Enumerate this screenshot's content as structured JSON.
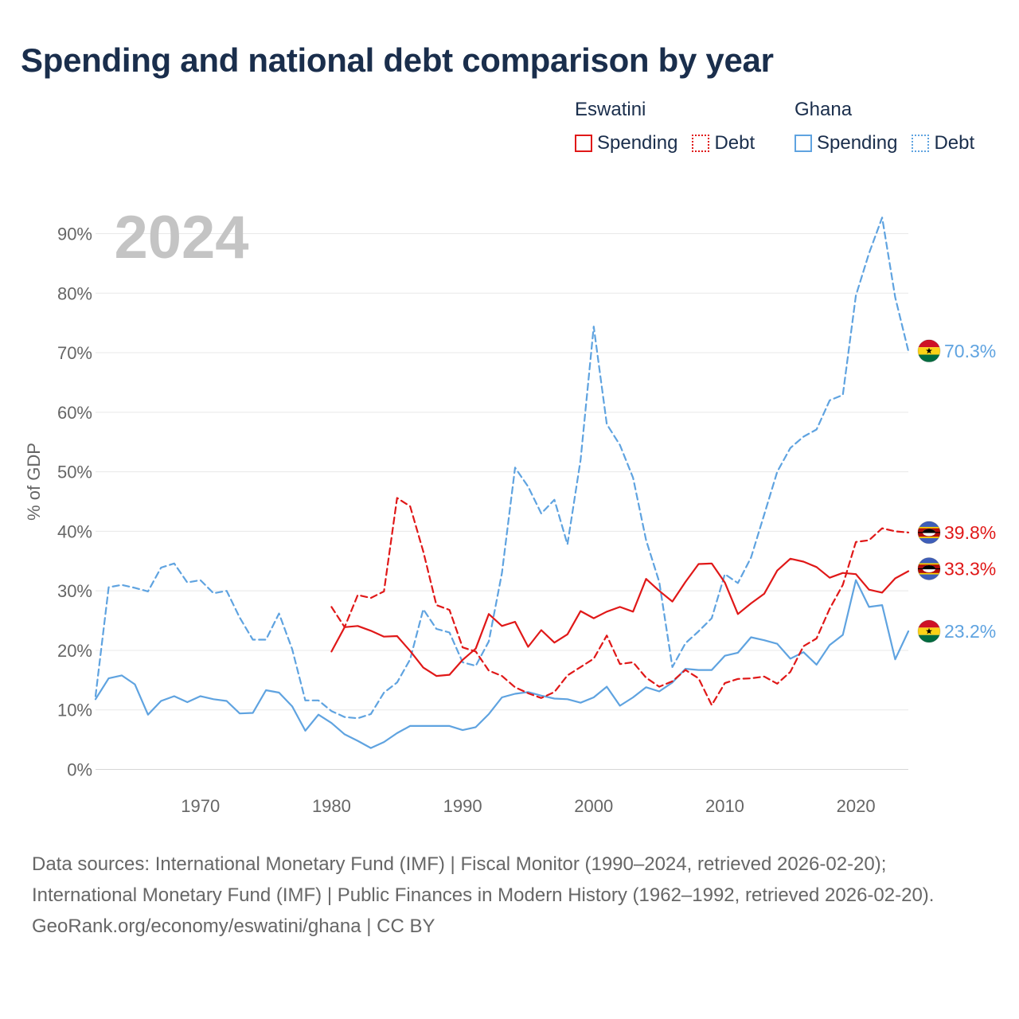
{
  "header": {
    "title": "Spending and national debt comparison by year"
  },
  "legend": {
    "groups": [
      {
        "country": "Eswatini",
        "color": "#e01818",
        "items": [
          "Spending",
          "Debt"
        ]
      },
      {
        "country": "Ghana",
        "color": "#5fa3e0",
        "items": [
          "Spending",
          "Debt"
        ]
      }
    ]
  },
  "chart_data": {
    "type": "line",
    "title": "Spending and national debt comparison by year",
    "year_label": "2024",
    "ylabel": "% of GDP",
    "xlabel": "",
    "xlim": [
      1962,
      2024
    ],
    "ylim": [
      0,
      90
    ],
    "yticks": [
      0,
      10,
      20,
      30,
      40,
      50,
      60,
      70,
      80,
      90
    ],
    "ytick_labels": [
      "0%",
      "10%",
      "20%",
      "30%",
      "40%",
      "50%",
      "60%",
      "70%",
      "80%",
      "90%"
    ],
    "xticks": [
      1970,
      1980,
      1990,
      2000,
      2010,
      2020
    ],
    "xtick_labels": [
      "1970",
      "1980",
      "1990",
      "2000",
      "2010",
      "2020"
    ],
    "series": [
      {
        "name": "Ghana Debt",
        "country": "Ghana",
        "kind": "Debt",
        "style": "dashed",
        "color": "#5fa3e0",
        "start_year": 1962,
        "values": [
          12.3,
          30.6,
          31.0,
          30.5,
          29.9,
          33.9,
          34.6,
          31.4,
          31.8,
          29.6,
          30.0,
          25.5,
          21.8,
          21.8,
          26.2,
          20.2,
          11.6,
          11.6,
          9.8,
          8.8,
          8.6,
          9.3,
          12.9,
          14.6,
          18.5,
          26.9,
          23.6,
          23.0,
          18.0,
          17.4,
          21.5,
          33.0,
          50.7,
          47.5,
          43.0,
          45.3,
          37.8,
          52.0,
          74.4,
          58.0,
          54.5,
          49.0,
          38.5,
          31.5,
          17.2,
          21.2,
          23.2,
          25.4,
          32.8,
          31.3,
          35.6,
          42.8,
          50.0,
          54.0,
          55.9,
          57.1,
          62.0,
          62.9,
          79.6,
          86.7,
          92.7,
          79.3,
          70.3
        ],
        "end_label": "70.3%"
      },
      {
        "name": "Ghana Spending",
        "country": "Ghana",
        "kind": "Spending",
        "style": "solid",
        "color": "#5fa3e0",
        "start_year": 1962,
        "values": [
          11.8,
          15.3,
          15.8,
          14.3,
          9.2,
          11.5,
          12.3,
          11.3,
          12.3,
          11.8,
          11.5,
          9.4,
          9.5,
          13.3,
          12.9,
          10.6,
          6.5,
          9.2,
          7.8,
          5.9,
          4.8,
          3.6,
          4.6,
          6.1,
          7.3,
          7.3,
          7.3,
          7.3,
          6.6,
          7.1,
          9.3,
          12.1,
          12.7,
          13.0,
          12.4,
          11.9,
          11.8,
          11.2,
          12.1,
          13.9,
          10.7,
          12.1,
          13.8,
          13.1,
          14.6,
          16.9,
          16.7,
          16.7,
          19.1,
          19.6,
          22.2,
          21.7,
          21.1,
          18.6,
          19.7,
          17.6,
          20.9,
          22.6,
          31.8,
          27.3,
          27.6,
          18.5,
          23.2
        ],
        "end_label": "23.2%"
      },
      {
        "name": "Eswatini Debt",
        "country": "Eswatini",
        "kind": "Debt",
        "style": "dashed",
        "color": "#e01818",
        "start_year": 1980,
        "values": [
          27.3,
          23.9,
          29.3,
          28.8,
          29.9,
          45.6,
          44.2,
          36.6,
          27.6,
          26.8,
          20.5,
          19.8,
          16.6,
          15.7,
          13.8,
          12.8,
          12.0,
          13.0,
          15.8,
          17.2,
          18.6,
          22.5,
          17.7,
          18.0,
          15.4,
          13.9,
          14.8,
          16.7,
          15.3,
          10.8,
          14.5,
          15.2,
          15.3,
          15.6,
          14.4,
          16.4,
          20.7,
          22.0,
          27.0,
          31.0,
          38.2,
          38.5,
          40.5,
          40.0,
          39.8
        ],
        "end_label": "39.8%"
      },
      {
        "name": "Eswatini Spending",
        "country": "Eswatini",
        "kind": "Spending",
        "style": "solid",
        "color": "#e01818",
        "start_year": 1980,
        "values": [
          19.8,
          23.9,
          24.1,
          23.3,
          22.3,
          22.4,
          19.9,
          17.1,
          15.7,
          15.9,
          18.4,
          20.3,
          26.1,
          24.1,
          24.8,
          20.6,
          23.4,
          21.3,
          22.7,
          26.6,
          25.4,
          26.5,
          27.3,
          26.5,
          32.0,
          30.0,
          28.2,
          31.5,
          34.5,
          34.6,
          31.4,
          26.1,
          27.9,
          29.5,
          33.4,
          35.4,
          34.9,
          34.0,
          32.2,
          33.0,
          32.8,
          30.2,
          29.7,
          32.1,
          33.3
        ],
        "end_label": "33.3%"
      }
    ]
  },
  "flags": [
    {
      "country": "Ghana",
      "series": "Ghana Debt",
      "colors": [
        "#ce1126",
        "#fcd116",
        "#006b3f",
        "#000000"
      ]
    },
    {
      "country": "Eswatini",
      "series": "Eswatini Debt",
      "colors": [
        "#3e5eb9",
        "#ffd900",
        "#b10c0c",
        "#ffffff",
        "#000000"
      ]
    },
    {
      "country": "Eswatini",
      "series": "Eswatini Spending",
      "colors": [
        "#3e5eb9",
        "#ffd900",
        "#b10c0c",
        "#ffffff",
        "#000000"
      ]
    },
    {
      "country": "Ghana",
      "series": "Ghana Spending",
      "colors": [
        "#ce1126",
        "#fcd116",
        "#006b3f",
        "#000000"
      ]
    }
  ],
  "footer": {
    "sources": "Data sources: International Monetary Fund (IMF) | Fiscal Monitor (1990–2024, retrieved 2026-02-20); International Monetary Fund (IMF) | Public Finances in Modern History (1962–1992, retrieved 2026-02-20).",
    "credit": "GeoRank.org/economy/eswatini/ghana | CC BY"
  }
}
